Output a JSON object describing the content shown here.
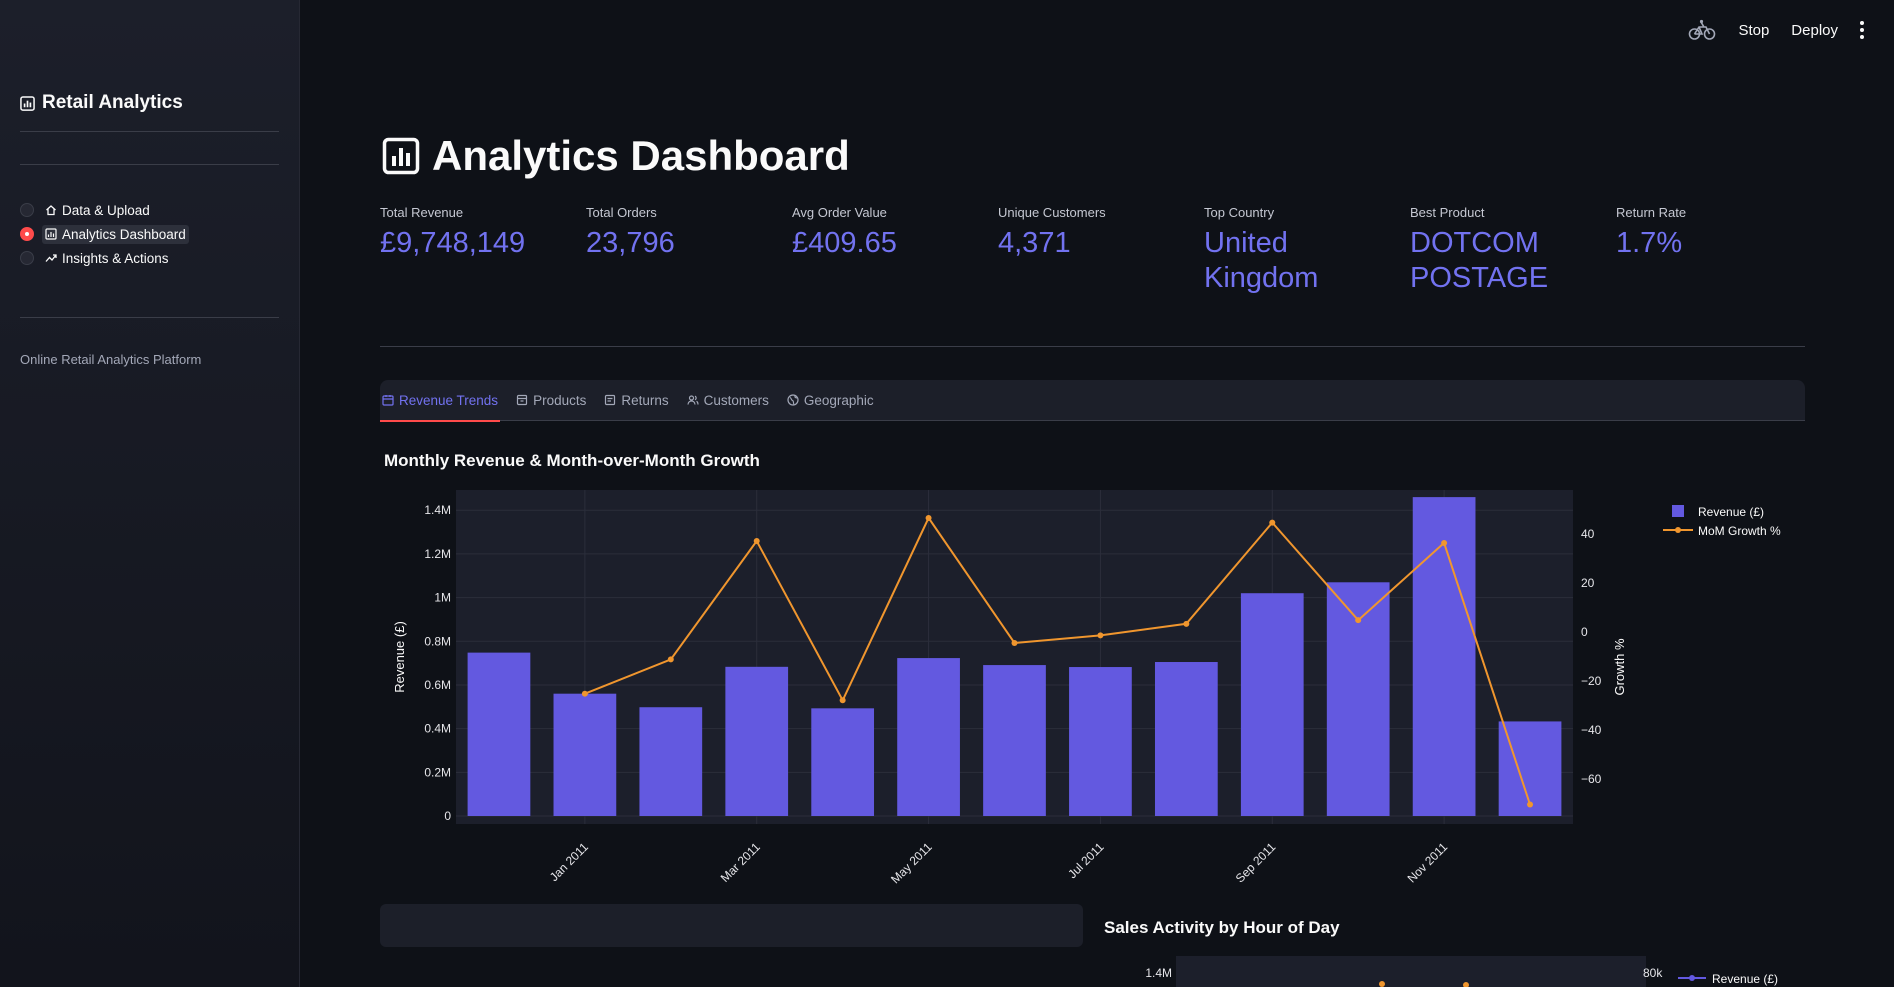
{
  "sidebar": {
    "title": "Retail Analytics",
    "nav": [
      {
        "label": "Data & Upload",
        "icon": "home-icon",
        "selected": false
      },
      {
        "label": "Analytics Dashboard",
        "icon": "chart-icon",
        "selected": true
      },
      {
        "label": "Insights & Actions",
        "icon": "trend-icon",
        "selected": false
      }
    ],
    "footer": "Online Retail Analytics Platform"
  },
  "header": {
    "stop_label": "Stop",
    "deploy_label": "Deploy",
    "running_icon": "bike-icon",
    "menu_icon": "kebab-icon"
  },
  "page": {
    "title": "Analytics Dashboard"
  },
  "metrics": [
    {
      "label": "Total Revenue",
      "value": "£9,748,149"
    },
    {
      "label": "Total Orders",
      "value": "23,796"
    },
    {
      "label": "Avg Order Value",
      "value": "£409.65"
    },
    {
      "label": "Unique Customers",
      "value": "4,371"
    },
    {
      "label": "Top Country",
      "value": "United Kingdom"
    },
    {
      "label": "Best Product",
      "value": "DOTCOM POSTAGE"
    },
    {
      "label": "Return Rate",
      "value": "1.7%"
    }
  ],
  "tabs": [
    {
      "label": "Revenue Trends",
      "icon": "calendar-icon",
      "active": true
    },
    {
      "label": "Products",
      "icon": "box-icon",
      "active": false
    },
    {
      "label": "Returns",
      "icon": "receipt-icon",
      "active": false
    },
    {
      "label": "Customers",
      "icon": "users-icon",
      "active": false
    },
    {
      "label": "Geographic",
      "icon": "globe-icon",
      "active": false
    }
  ],
  "sections": {
    "monthly_title": "Monthly Revenue & Month-over-Month Growth",
    "hourly_title": "Sales Activity by Hour of Day"
  },
  "colors": {
    "bar": "#6359e0",
    "line": "#f0962e",
    "accent": "#ff4b4b",
    "metric": "#7272f0"
  },
  "chart_data": [
    {
      "type": "bar",
      "title": "Monthly Revenue & Month-over-Month Growth",
      "categories": [
        "Dec 2010",
        "Jan 2011",
        "Feb 2011",
        "Mar 2011",
        "Apr 2011",
        "May 2011",
        "Jun 2011",
        "Jul 2011",
        "Aug 2011",
        "Sep 2011",
        "Oct 2011",
        "Nov 2011",
        "Dec 2011"
      ],
      "x_tick_labels": [
        "Jan 2011",
        "Mar 2011",
        "May 2011",
        "Jul 2011",
        "Sep 2011",
        "Nov 2011"
      ],
      "series": [
        {
          "name": "Revenue (£)",
          "type": "bar",
          "axis": "left",
          "values": [
            748000,
            560000,
            498000,
            683000,
            493000,
            723000,
            691000,
            682000,
            705000,
            1020000,
            1070000,
            1460000,
            433000
          ]
        },
        {
          "name": "MoM Growth %",
          "type": "line",
          "axis": "right",
          "values": [
            null,
            -25.1,
            -11.1,
            37.2,
            -27.8,
            46.6,
            -4.4,
            -1.3,
            3.4,
            44.7,
            4.9,
            36.4,
            -70.3
          ]
        }
      ],
      "ylabel": "Revenue (£)",
      "y2label": "Growth %",
      "ylim": [
        0,
        1500000
      ],
      "y_ticks": [
        0,
        200000,
        400000,
        600000,
        800000,
        1000000,
        1200000,
        1400000
      ],
      "y_tick_labels": [
        "0",
        "0.2M",
        "0.4M",
        "0.6M",
        "0.8M",
        "1M",
        "1.2M",
        "1.4M"
      ],
      "y2lim": [
        -75,
        58
      ],
      "y2_ticks": [
        -60,
        -40,
        -20,
        0,
        20,
        40
      ],
      "y2_tick_labels": [
        "−60",
        "−40",
        "−20",
        "0",
        "20",
        "40"
      ],
      "legend_position": "top-right",
      "grid": true
    },
    {
      "type": "line",
      "title": "Sales Activity by Hour of Day",
      "series": [
        {
          "name": "Revenue (£)"
        }
      ],
      "y_tick_labels": [
        "1.4M"
      ],
      "y2_tick_labels": [
        "80k"
      ],
      "legend_position": "top-right"
    }
  ]
}
